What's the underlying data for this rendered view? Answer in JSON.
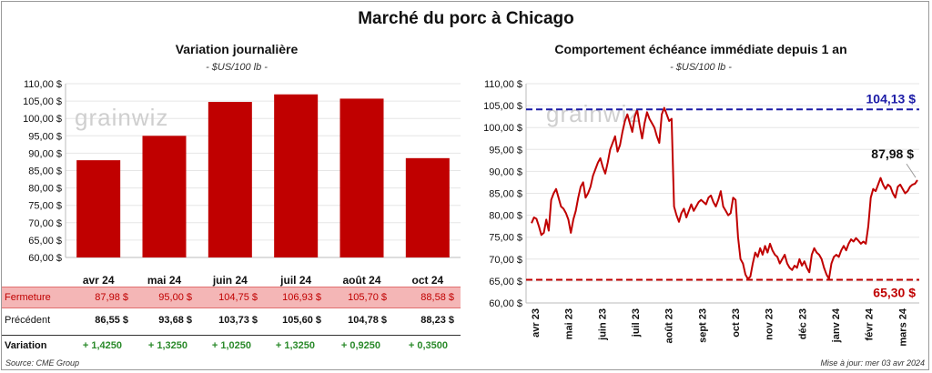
{
  "title": "Marché du porc à Chicago",
  "source": "Source: CME Group",
  "updated": "Mise à jour: mer 03 avr 2024",
  "chart_data": [
    {
      "type": "bar",
      "title": "Variation  journalière",
      "subtitle": "- $US/100 lb -",
      "categories": [
        "avr 24",
        "mai 24",
        "juin 24",
        "juil 24",
        "août 24",
        "oct 24"
      ],
      "values": [
        87.98,
        95.0,
        104.75,
        106.93,
        105.7,
        88.58
      ],
      "ylim": [
        60,
        110
      ],
      "yticks": [
        "60,00 $",
        "65,00 $",
        "70,00 $",
        "75,00 $",
        "80,00 $",
        "85,00 $",
        "90,00 $",
        "95,00 $",
        "100,00 $",
        "105,00 $",
        "110,00 $"
      ],
      "color": "#c00000",
      "watermark": "grainwiz"
    },
    {
      "type": "line",
      "title": "Comportement  échéance immédiate depuis 1 an",
      "subtitle": "- $US/100 lb -",
      "ylim": [
        60,
        110
      ],
      "yticks": [
        "60,00 $",
        "65,00 $",
        "70,00 $",
        "75,00 $",
        "80,00 $",
        "85,00 $",
        "90,00 $",
        "95,00 $",
        "100,00 $",
        "105,00 $",
        "110,00 $"
      ],
      "xticks": [
        "avr 23",
        "mai 23",
        "juin 23",
        "juil 23",
        "août 23",
        "sept 23",
        "oct 23",
        "nov 23",
        "déc 23",
        "janv 24",
        "févr 24",
        "mars 24"
      ],
      "series_color": "#c00000",
      "values": [
        78.2,
        79.5,
        79.2,
        77.5,
        75.5,
        76.0,
        79.0,
        76.5,
        83.5,
        85.0,
        86.0,
        84.0,
        82.0,
        81.5,
        80.5,
        79.0,
        76.0,
        79.0,
        81.0,
        84.0,
        86.5,
        87.5,
        84.0,
        85.0,
        86.5,
        89.0,
        90.5,
        92.0,
        93.0,
        91.0,
        89.5,
        92.0,
        95.0,
        96.5,
        98.0,
        94.5,
        96.0,
        99.0,
        101.5,
        103.0,
        101.0,
        99.0,
        102.5,
        104.0,
        100.5,
        97.5,
        101.0,
        103.5,
        102.0,
        101.0,
        100.0,
        98.0,
        96.5,
        103.0,
        104.5,
        103.0,
        101.5,
        102.0,
        82.0,
        80.0,
        78.5,
        80.5,
        81.5,
        79.5,
        81.0,
        82.5,
        81.0,
        82.0,
        83.0,
        83.5,
        83.0,
        82.5,
        84.0,
        84.5,
        83.0,
        82.0,
        83.5,
        85.5,
        82.0,
        81.0,
        80.0,
        80.5,
        84.0,
        83.5,
        75.0,
        70.0,
        69.0,
        66.5,
        65.5,
        66.0,
        69.0,
        71.5,
        70.5,
        72.5,
        71.0,
        73.0,
        71.5,
        73.5,
        72.0,
        71.0,
        70.5,
        69.0,
        70.0,
        71.0,
        69.0,
        68.0,
        67.5,
        68.5,
        68.0,
        70.0,
        68.5,
        69.5,
        68.0,
        67.0,
        71.0,
        72.5,
        71.5,
        71.0,
        70.0,
        68.0,
        66.5,
        65.5,
        69.0,
        70.5,
        71.0,
        70.5,
        72.0,
        73.0,
        72.0,
        73.5,
        74.5,
        74.0,
        74.8,
        74.2,
        73.5,
        74.0,
        73.5,
        77.5,
        84.0,
        86.0,
        85.5,
        87.0,
        88.5,
        87.0,
        86.0,
        87.0,
        86.5,
        85.0,
        84.0,
        86.5,
        87.0,
        86.0,
        85.0,
        85.5,
        86.5,
        87.0,
        87.2,
        88.0
      ],
      "annotations": [
        {
          "label": "104,13 $",
          "value": 104.13,
          "color": "#1a1aa6"
        },
        {
          "label": "65,30 $",
          "value": 65.3,
          "color": "#c00000"
        },
        {
          "label": "87,98 $",
          "value": 87.98,
          "color": "#111111"
        }
      ],
      "watermark": "grainwiz"
    }
  ],
  "table": {
    "rows": [
      {
        "label": "Fermeture",
        "values": [
          "87,98  $",
          "95,00  $",
          "104,75  $",
          "106,93  $",
          "105,70  $",
          "88,58  $"
        ]
      },
      {
        "label": "Précédent",
        "values": [
          "86,55  $",
          "93,68  $",
          "103,73  $",
          "105,60  $",
          "104,78  $",
          "88,23  $"
        ]
      },
      {
        "label": "Variation",
        "values": [
          "+ 1,4250",
          "+ 1,3250",
          "+ 1,0250",
          "+ 1,3250",
          "+ 0,9250",
          "+ 0,3500"
        ]
      }
    ]
  }
}
